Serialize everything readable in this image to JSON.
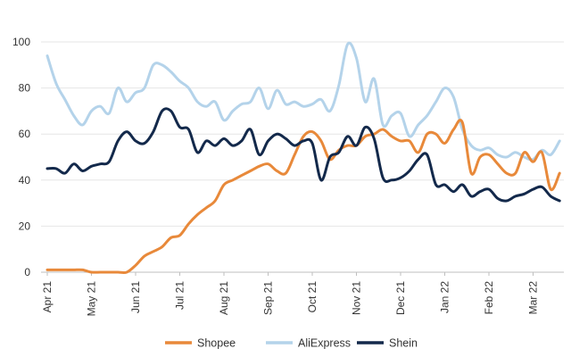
{
  "chart_data": {
    "type": "line",
    "title": "",
    "xlabel": "",
    "ylabel": "",
    "ylim": [
      0,
      100
    ],
    "yticks": [
      0,
      20,
      40,
      60,
      80,
      100
    ],
    "x_tick_labels": [
      "Apr 21",
      "May 21",
      "Jun 21",
      "Jul 21",
      "Aug 21",
      "Sep 21",
      "Oct 21",
      "Nov 21",
      "Dec 21",
      "Jan 22",
      "Feb 22",
      "Mar 22"
    ],
    "x_range": [
      0,
      11.6
    ],
    "legend_position": "bottom",
    "series": [
      {
        "name": "Shopee",
        "color": "#e8893a",
        "x": [
          0,
          0.2,
          0.4,
          0.6,
          0.8,
          1,
          1.2,
          1.4,
          1.6,
          1.8,
          2,
          2.2,
          2.4,
          2.6,
          2.8,
          3,
          3.2,
          3.4,
          3.6,
          3.8,
          4,
          4.2,
          4.4,
          4.6,
          4.8,
          5,
          5.2,
          5.4,
          5.6,
          5.8,
          6,
          6.2,
          6.4,
          6.6,
          6.8,
          7,
          7.2,
          7.4,
          7.6,
          7.8,
          8,
          8.2,
          8.4,
          8.6,
          8.8,
          9,
          9.2,
          9.4,
          9.6,
          9.8,
          10,
          10.2,
          10.4,
          10.6,
          10.8,
          11,
          11.2,
          11.4,
          11.6
        ],
        "y": [
          1,
          1,
          1,
          1,
          1,
          0,
          0,
          0,
          0,
          0,
          3,
          7,
          9,
          11,
          15,
          16,
          21,
          25,
          28,
          31,
          38,
          40,
          42,
          44,
          46,
          47,
          44,
          43,
          51,
          59,
          61,
          57,
          49,
          53,
          55,
          55,
          59,
          60,
          62,
          59,
          57,
          57,
          52,
          60,
          60,
          56,
          62,
          65,
          43,
          50,
          51,
          47,
          43,
          43,
          52,
          48,
          52,
          36,
          43
        ]
      },
      {
        "name": "AliExpress",
        "color": "#b4d3ea",
        "x": [
          0,
          0.2,
          0.4,
          0.6,
          0.8,
          1,
          1.2,
          1.4,
          1.6,
          1.8,
          2,
          2.2,
          2.4,
          2.6,
          2.8,
          3,
          3.2,
          3.4,
          3.6,
          3.8,
          4,
          4.2,
          4.4,
          4.6,
          4.8,
          5,
          5.2,
          5.4,
          5.6,
          5.8,
          6,
          6.2,
          6.4,
          6.6,
          6.8,
          7,
          7.2,
          7.4,
          7.6,
          7.8,
          8,
          8.2,
          8.4,
          8.6,
          8.8,
          9,
          9.2,
          9.4,
          9.6,
          9.8,
          10,
          10.2,
          10.4,
          10.6,
          10.8,
          11,
          11.2,
          11.4,
          11.6
        ],
        "y": [
          94,
          82,
          75,
          68,
          64,
          70,
          72,
          69,
          80,
          74,
          78,
          80,
          90,
          90,
          87,
          83,
          80,
          74,
          72,
          74,
          66,
          70,
          73,
          74,
          80,
          71,
          79,
          73,
          74,
          72,
          73,
          75,
          70,
          81,
          99,
          93,
          74,
          84,
          64,
          68,
          69,
          59,
          64,
          68,
          74,
          80,
          76,
          62,
          55,
          53,
          54,
          51,
          50,
          52,
          50,
          49,
          53,
          51,
          57
        ]
      },
      {
        "name": "Shein",
        "color": "#13294b",
        "x": [
          0,
          0.2,
          0.4,
          0.6,
          0.8,
          1,
          1.2,
          1.4,
          1.6,
          1.8,
          2,
          2.2,
          2.4,
          2.6,
          2.8,
          3,
          3.2,
          3.4,
          3.6,
          3.8,
          4,
          4.2,
          4.4,
          4.6,
          4.8,
          5,
          5.2,
          5.4,
          5.6,
          5.8,
          6,
          6.2,
          6.4,
          6.6,
          6.8,
          7,
          7.2,
          7.4,
          7.6,
          7.8,
          8,
          8.2,
          8.4,
          8.6,
          8.8,
          9,
          9.2,
          9.4,
          9.6,
          9.8,
          10,
          10.2,
          10.4,
          10.6,
          10.8,
          11,
          11.2,
          11.4,
          11.6
        ],
        "y": [
          45,
          45,
          43,
          47,
          44,
          46,
          47,
          48,
          57,
          61,
          57,
          56,
          61,
          70,
          70,
          63,
          62,
          52,
          57,
          55,
          58,
          55,
          57,
          62,
          51,
          57,
          60,
          58,
          55,
          57,
          56,
          40,
          50,
          52,
          59,
          55,
          63,
          58,
          41,
          40,
          41,
          44,
          49,
          51,
          38,
          38,
          35,
          38,
          33,
          35,
          36,
          32,
          31,
          33,
          34,
          36,
          37,
          33,
          31
        ]
      }
    ]
  }
}
